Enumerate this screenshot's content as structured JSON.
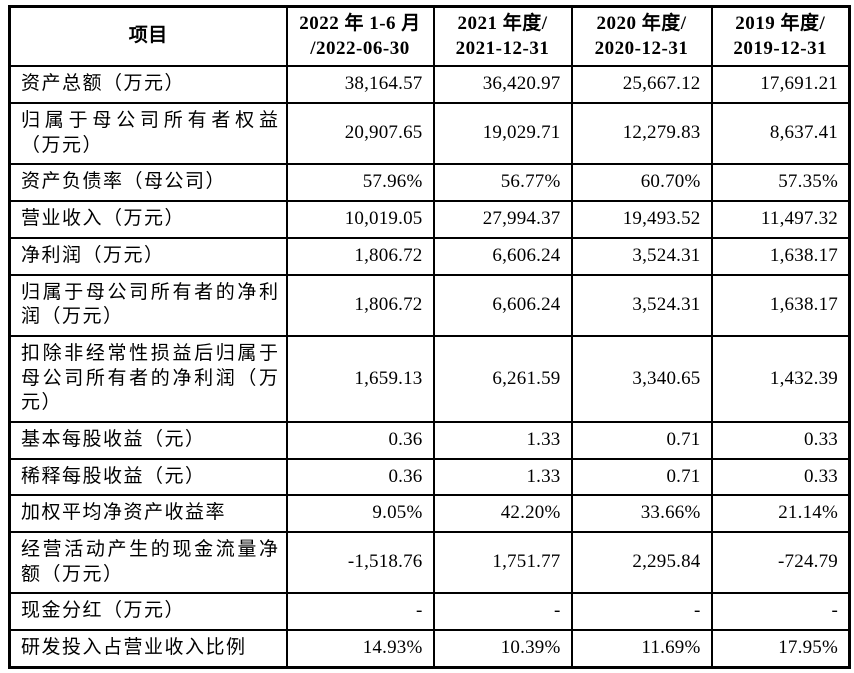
{
  "page": {
    "background_color": "#ffffff",
    "text_color": "#000000",
    "border_color": "#000000"
  },
  "table": {
    "header": [
      "项目",
      "2022 年 1-6 月\n/2022-06-30",
      "2021 年度/\n2021-12-31",
      "2020 年度/\n2020-12-31",
      "2019 年度/\n2019-12-31"
    ],
    "rows": [
      {
        "label": "资产总额（万元）",
        "values": [
          "38,164.57",
          "36,420.97",
          "25,667.12",
          "17,691.21"
        ]
      },
      {
        "label": "归属于母公司所有者权益（万元）",
        "values": [
          "20,907.65",
          "19,029.71",
          "12,279.83",
          "8,637.41"
        ]
      },
      {
        "label": "资产负债率（母公司）",
        "values": [
          "57.96%",
          "56.77%",
          "60.70%",
          "57.35%"
        ]
      },
      {
        "label": "营业收入（万元）",
        "values": [
          "10,019.05",
          "27,994.37",
          "19,493.52",
          "11,497.32"
        ]
      },
      {
        "label": "净利润（万元）",
        "values": [
          "1,806.72",
          "6,606.24",
          "3,524.31",
          "1,638.17"
        ]
      },
      {
        "label": "归属于母公司所有者的净利润（万元）",
        "values": [
          "1,806.72",
          "6,606.24",
          "3,524.31",
          "1,638.17"
        ]
      },
      {
        "label": "扣除非经常性损益后归属于母公司所有者的净利润（万元）",
        "values": [
          "1,659.13",
          "6,261.59",
          "3,340.65",
          "1,432.39"
        ]
      },
      {
        "label": "基本每股收益（元）",
        "values": [
          "0.36",
          "1.33",
          "0.71",
          "0.33"
        ]
      },
      {
        "label": "稀释每股收益（元）",
        "values": [
          "0.36",
          "1.33",
          "0.71",
          "0.33"
        ]
      },
      {
        "label": "加权平均净资产收益率",
        "values": [
          "9.05%",
          "42.20%",
          "33.66%",
          "21.14%"
        ]
      },
      {
        "label": "经营活动产生的现金流量净额（万元）",
        "values": [
          "-1,518.76",
          "1,751.77",
          "2,295.84",
          "-724.79"
        ]
      },
      {
        "label": "现金分红（万元）",
        "values": [
          "-",
          "-",
          "-",
          "-"
        ]
      },
      {
        "label": "研发投入占营业收入比例",
        "values": [
          "14.93%",
          "10.39%",
          "11.69%",
          "17.95%"
        ]
      }
    ]
  }
}
